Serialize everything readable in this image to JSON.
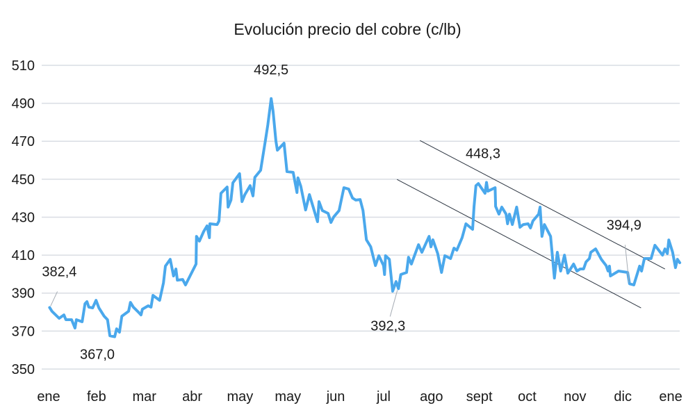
{
  "chart_data": {
    "type": "line",
    "title": "Evolución precio del cobre (c/lb)",
    "xlabel": "",
    "ylabel": "",
    "ylim": [
      350,
      510
    ],
    "yticks": [
      350,
      370,
      390,
      410,
      430,
      450,
      470,
      490,
      510
    ],
    "ytick_labels": [
      "350",
      "370",
      "390",
      "410",
      "430",
      "450",
      "470",
      "490",
      "510"
    ],
    "x_categories": [
      "ene",
      "feb",
      "mar",
      "abr",
      "may",
      "may",
      "jun",
      "jul",
      "ago",
      "sept",
      "oct",
      "nov",
      "dic",
      "ene"
    ],
    "grid": "horizontal",
    "legend": "none",
    "line_color": "#4aa8ec",
    "trend_color": "#2b3440",
    "series": [
      {
        "points": [
          [
            0.02,
            382.4
          ],
          [
            0.07,
            380.4
          ],
          [
            0.22,
            376.7
          ],
          [
            0.32,
            378.5
          ],
          [
            0.36,
            376.0
          ],
          [
            0.48,
            376.0
          ],
          [
            0.55,
            371.6
          ],
          [
            0.58,
            376.0
          ],
          [
            0.7,
            374.9
          ],
          [
            0.76,
            384.4
          ],
          [
            0.8,
            385.5
          ],
          [
            0.84,
            382.6
          ],
          [
            0.92,
            382.2
          ],
          [
            0.99,
            386.2
          ],
          [
            1.05,
            382.2
          ],
          [
            1.16,
            377.8
          ],
          [
            1.23,
            376.0
          ],
          [
            1.28,
            367.5
          ],
          [
            1.38,
            367.0
          ],
          [
            1.42,
            371.2
          ],
          [
            1.48,
            369.4
          ],
          [
            1.53,
            377.8
          ],
          [
            1.67,
            380.4
          ],
          [
            1.71,
            385.1
          ],
          [
            1.77,
            382.6
          ],
          [
            1.89,
            379.6
          ],
          [
            1.93,
            378.5
          ],
          [
            1.96,
            381.5
          ],
          [
            2.08,
            383.3
          ],
          [
            2.14,
            382.6
          ],
          [
            2.18,
            388.8
          ],
          [
            2.32,
            386.2
          ],
          [
            2.4,
            395.4
          ],
          [
            2.44,
            404.2
          ],
          [
            2.54,
            407.8
          ],
          [
            2.61,
            399.0
          ],
          [
            2.66,
            402.7
          ],
          [
            2.69,
            396.8
          ],
          [
            2.8,
            397.2
          ],
          [
            2.86,
            394.3
          ],
          [
            3.08,
            405.3
          ],
          [
            3.09,
            419.9
          ],
          [
            3.15,
            417.4
          ],
          [
            3.24,
            422.5
          ],
          [
            3.31,
            425.4
          ],
          [
            3.36,
            419.2
          ],
          [
            3.37,
            426.5
          ],
          [
            3.52,
            426.1
          ],
          [
            3.56,
            428.0
          ],
          [
            3.6,
            442.6
          ],
          [
            3.73,
            445.9
          ],
          [
            3.75,
            435.3
          ],
          [
            3.81,
            439.0
          ],
          [
            3.85,
            448.1
          ],
          [
            3.99,
            452.9
          ],
          [
            4.04,
            438.2
          ],
          [
            4.1,
            441.9
          ],
          [
            4.21,
            446.6
          ],
          [
            4.27,
            441.2
          ],
          [
            4.31,
            451.0
          ],
          [
            4.43,
            454.7
          ],
          [
            4.53,
            470.5
          ],
          [
            4.58,
            478.5
          ],
          [
            4.65,
            492.5
          ],
          [
            4.69,
            485.8
          ],
          [
            4.75,
            470.1
          ],
          [
            4.78,
            465.3
          ],
          [
            4.92,
            469.0
          ],
          [
            4.98,
            454.0
          ],
          [
            5.11,
            453.6
          ],
          [
            5.19,
            443.0
          ],
          [
            5.21,
            450.7
          ],
          [
            5.27,
            446.3
          ],
          [
            5.37,
            433.8
          ],
          [
            5.45,
            441.9
          ],
          [
            5.62,
            427.6
          ],
          [
            5.65,
            438.2
          ],
          [
            5.72,
            433.5
          ],
          [
            5.84,
            432.0
          ],
          [
            5.9,
            427.2
          ],
          [
            5.96,
            430.2
          ],
          [
            6.07,
            433.5
          ],
          [
            6.17,
            445.5
          ],
          [
            6.27,
            444.8
          ],
          [
            6.35,
            440.1
          ],
          [
            6.42,
            439.0
          ],
          [
            6.51,
            439.3
          ],
          [
            6.57,
            433.5
          ],
          [
            6.64,
            418.1
          ],
          [
            6.73,
            414.4
          ],
          [
            6.83,
            404.5
          ],
          [
            6.9,
            409.7
          ],
          [
            7.0,
            404.5
          ],
          [
            7.02,
            399.8
          ],
          [
            7.04,
            409.7
          ],
          [
            7.12,
            407.8
          ],
          [
            7.19,
            391.0
          ],
          [
            7.26,
            396.1
          ],
          [
            7.31,
            392.3
          ],
          [
            7.36,
            399.8
          ],
          [
            7.48,
            400.9
          ],
          [
            7.52,
            408.9
          ],
          [
            7.58,
            405.3
          ],
          [
            7.73,
            415.5
          ],
          [
            7.8,
            411.5
          ],
          [
            7.95,
            419.9
          ],
          [
            7.99,
            414.4
          ],
          [
            8.03,
            418.1
          ],
          [
            8.13,
            410.8
          ],
          [
            8.21,
            400.9
          ],
          [
            8.28,
            409.7
          ],
          [
            8.4,
            408.2
          ],
          [
            8.47,
            413.7
          ],
          [
            8.53,
            412.6
          ],
          [
            8.64,
            419.2
          ],
          [
            8.72,
            426.5
          ],
          [
            8.86,
            423.6
          ],
          [
            8.89,
            435.7
          ],
          [
            8.93,
            446.6
          ],
          [
            8.98,
            447.7
          ],
          [
            9.12,
            442.6
          ],
          [
            9.15,
            448.3
          ],
          [
            9.18,
            443.7
          ],
          [
            9.33,
            445.5
          ],
          [
            9.34,
            435.7
          ],
          [
            9.41,
            431.6
          ],
          [
            9.47,
            435.3
          ],
          [
            9.56,
            431.6
          ],
          [
            9.59,
            426.5
          ],
          [
            9.63,
            431.6
          ],
          [
            9.69,
            426.1
          ],
          [
            9.78,
            435.3
          ],
          [
            9.85,
            424.7
          ],
          [
            9.92,
            426.1
          ],
          [
            10.02,
            426.5
          ],
          [
            10.07,
            424.3
          ],
          [
            10.12,
            428.0
          ],
          [
            10.24,
            431.6
          ],
          [
            10.27,
            435.3
          ],
          [
            10.31,
            419.9
          ],
          [
            10.36,
            426.1
          ],
          [
            10.49,
            419.9
          ],
          [
            10.57,
            397.9
          ],
          [
            10.63,
            411.5
          ],
          [
            10.7,
            401.6
          ],
          [
            10.78,
            410.0
          ],
          [
            10.85,
            400.5
          ],
          [
            10.97,
            405.3
          ],
          [
            11.04,
            401.6
          ],
          [
            11.11,
            402.7
          ],
          [
            11.18,
            402.7
          ],
          [
            11.23,
            406.4
          ],
          [
            11.3,
            408.2
          ],
          [
            11.33,
            411.5
          ],
          [
            11.43,
            413.3
          ],
          [
            11.47,
            411.5
          ],
          [
            11.55,
            407.8
          ],
          [
            11.65,
            404.5
          ],
          [
            11.69,
            401.6
          ],
          [
            11.72,
            404.2
          ],
          [
            11.74,
            399.0
          ],
          [
            11.91,
            401.6
          ],
          [
            12.1,
            400.9
          ],
          [
            12.14,
            394.9
          ],
          [
            12.23,
            394.3
          ],
          [
            12.35,
            404.2
          ],
          [
            12.39,
            401.6
          ],
          [
            12.45,
            408.2
          ],
          [
            12.59,
            408.2
          ],
          [
            12.67,
            415.2
          ],
          [
            12.75,
            412.6
          ],
          [
            12.83,
            410.0
          ],
          [
            12.88,
            413.3
          ],
          [
            12.93,
            410.8
          ],
          [
            12.96,
            418.0
          ],
          [
            13.04,
            411.5
          ],
          [
            13.1,
            403.4
          ],
          [
            13.14,
            407.8
          ],
          [
            13.19,
            406.0
          ]
        ]
      }
    ],
    "annotations": [
      {
        "text": "382,4",
        "x": 0.02,
        "y": 382.4
      },
      {
        "text": "367,0",
        "x": 1.38,
        "y": 367.0
      },
      {
        "text": "492,5",
        "x": 4.65,
        "y": 492.5
      },
      {
        "text": "392,3",
        "x": 7.31,
        "y": 392.3
      },
      {
        "text": "448,3",
        "x": 9.15,
        "y": 448.3
      },
      {
        "text": "394,9",
        "x": 12.14,
        "y": 394.9
      }
    ],
    "trend_lines": [
      {
        "from": [
          7.76,
          470.4
        ],
        "to": [
          12.88,
          402.7
        ]
      },
      {
        "from": [
          7.28,
          449.9
        ],
        "to": [
          12.38,
          382.2
        ]
      }
    ]
  }
}
